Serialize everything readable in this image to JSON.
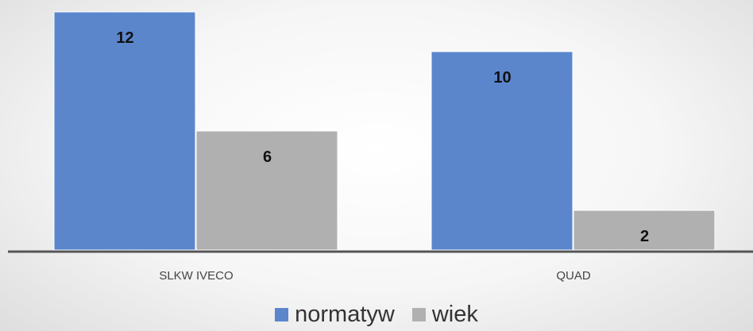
{
  "chart_data": {
    "type": "bar",
    "categories": [
      "SLKW IVECO",
      "QUAD"
    ],
    "series": [
      {
        "name": "normatyw",
        "values": [
          12,
          10
        ],
        "color": "#5b86cc"
      },
      {
        "name": "wiek",
        "values": [
          6,
          2
        ],
        "color": "#b0b0b0"
      }
    ],
    "data_labels": true,
    "ylim": [
      0,
      12
    ],
    "grid": false,
    "axis_color": "#555555",
    "legend_position": "bottom"
  }
}
